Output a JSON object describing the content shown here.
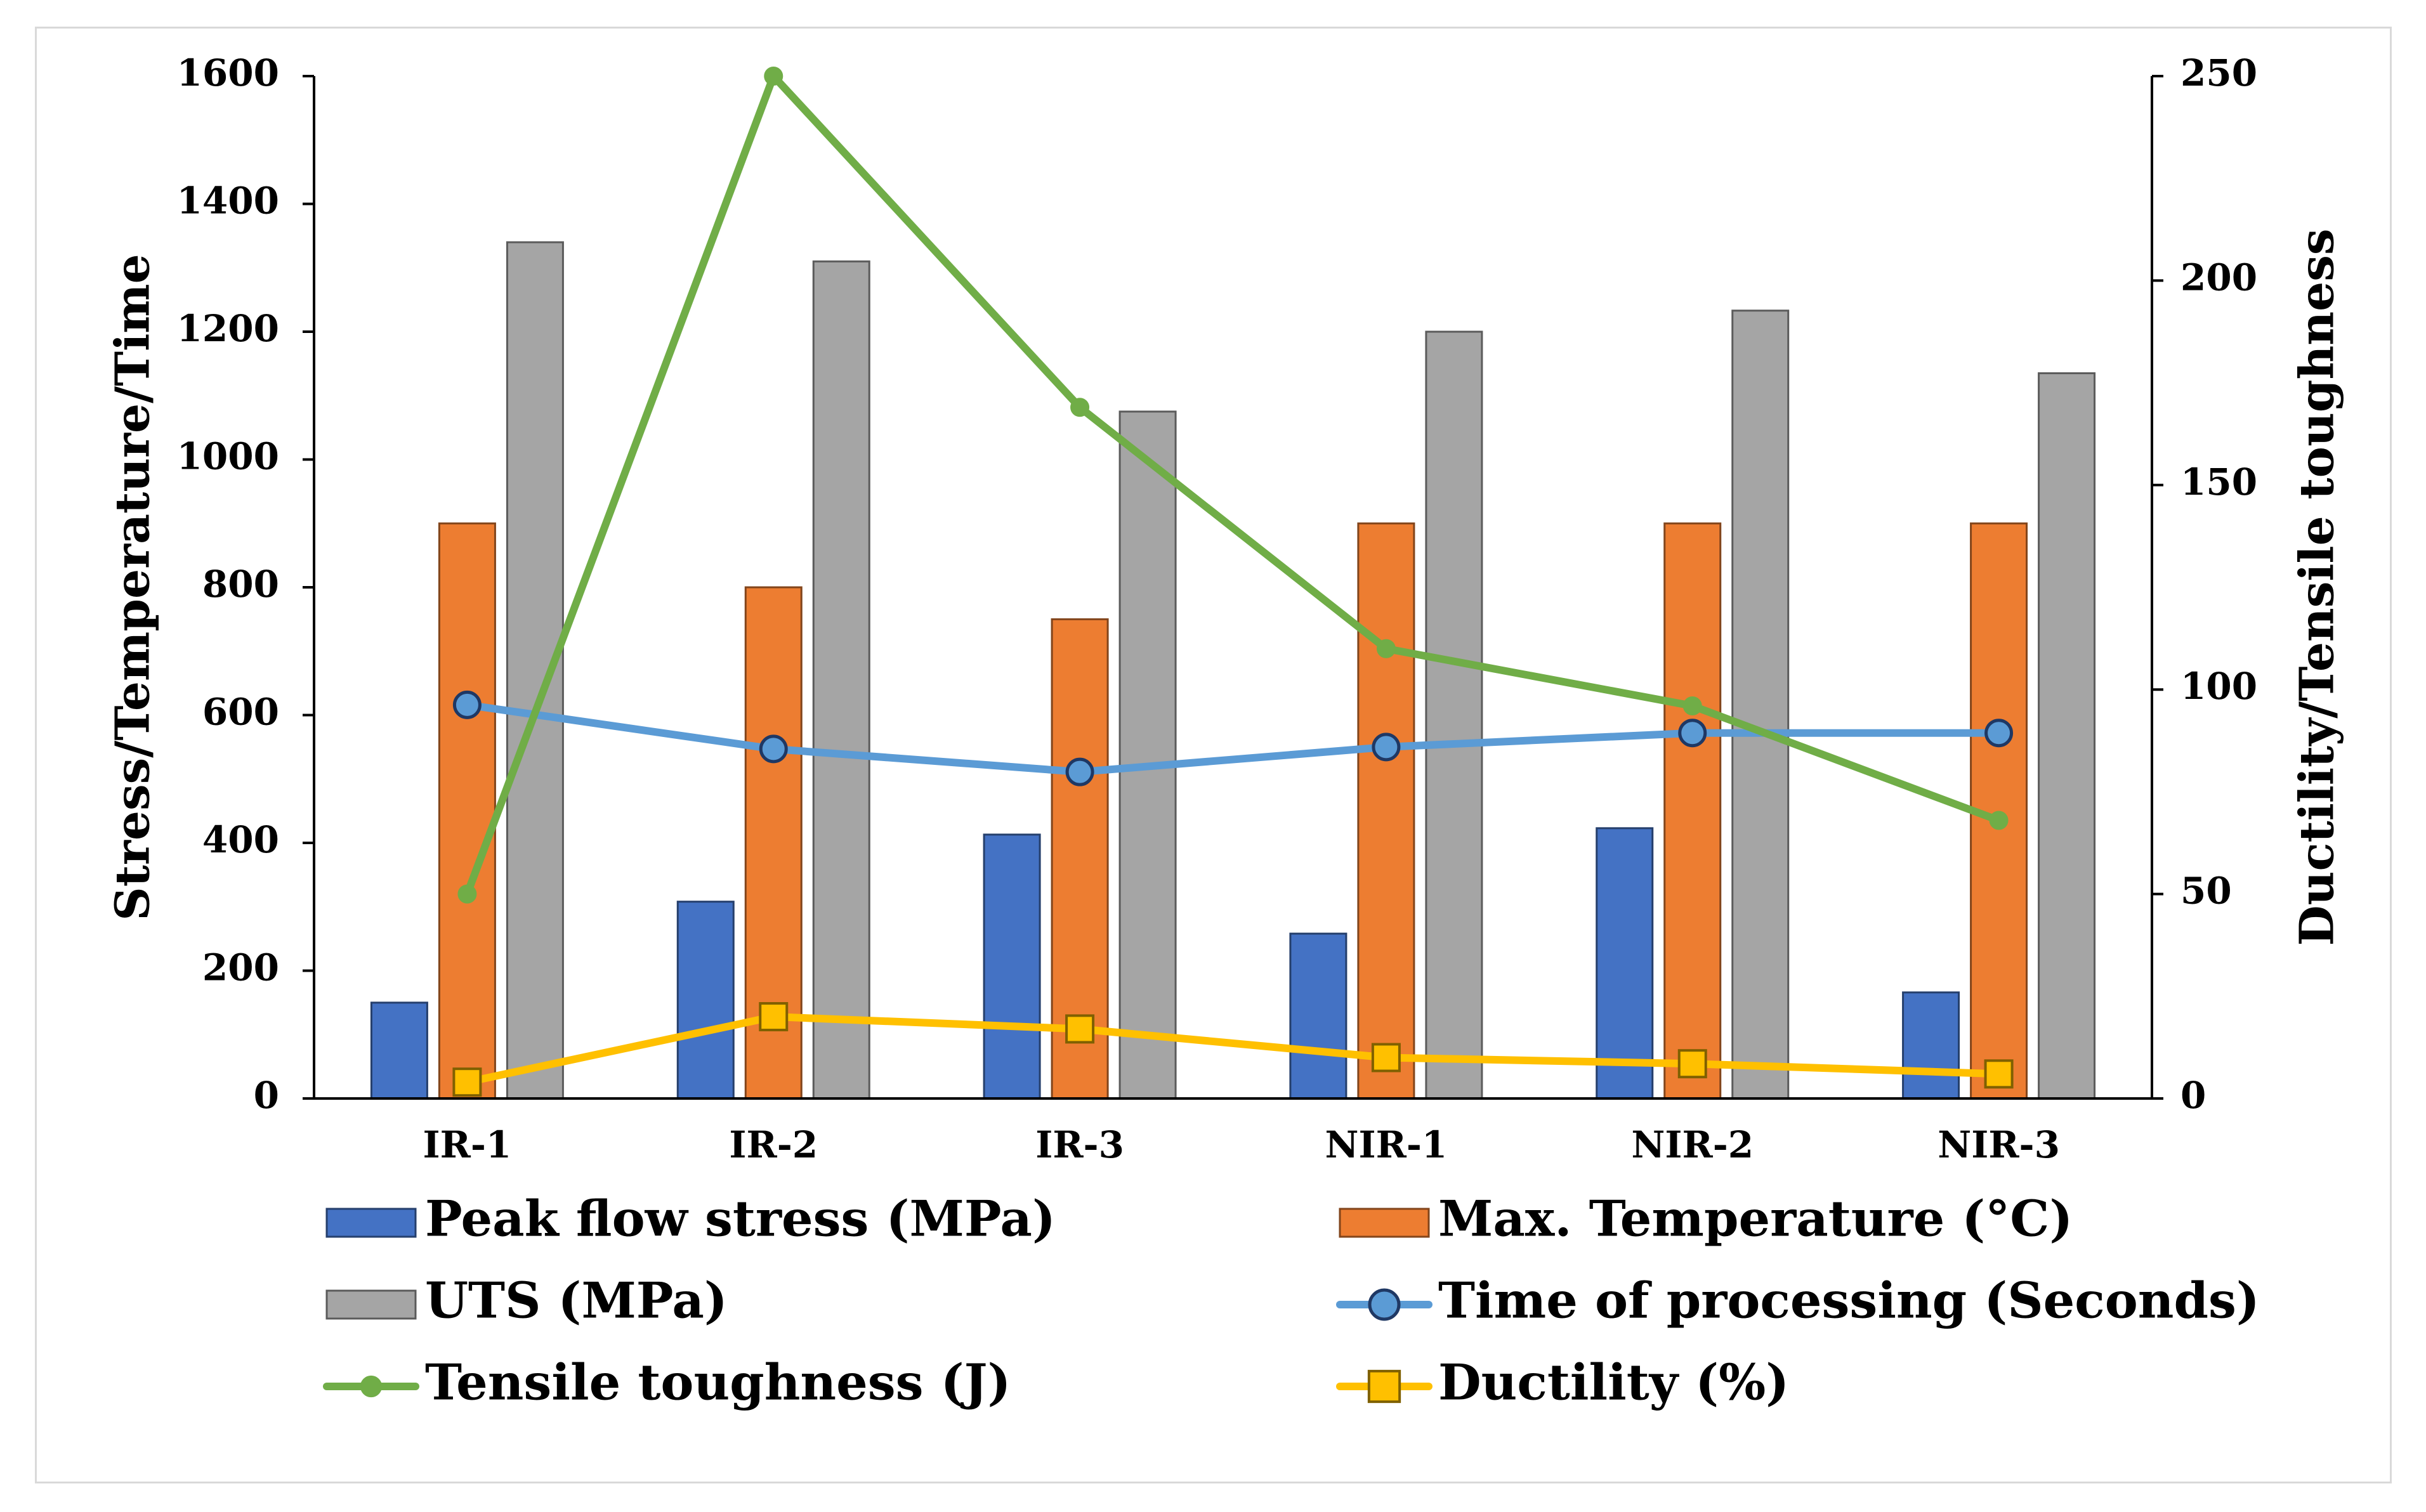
{
  "chart_data": {
    "type": "bar",
    "categories": [
      "IR-1",
      "IR-2",
      "IR-3",
      "NIR-1",
      "NIR-2",
      "NIR-3"
    ],
    "ylabel": "Stress/Temperature/Time",
    "y2label": "Ductility/Tensile toughness",
    "ylim": [
      0,
      1600
    ],
    "y2lim": [
      0,
      250
    ],
    "yticks": [
      0,
      200,
      400,
      600,
      800,
      1000,
      1200,
      1400,
      1600
    ],
    "y2ticks": [
      0,
      50,
      100,
      150,
      200,
      250
    ],
    "grid": false,
    "legend_position": "bottom",
    "series": [
      {
        "name": "Peak flow stress (MPa)",
        "kind": "bar",
        "axis": "left",
        "color": "#4472c4",
        "values": [
          150,
          308,
          413,
          258,
          423,
          166
        ]
      },
      {
        "name": "Max. Temperature (°C)",
        "kind": "bar",
        "axis": "left",
        "color": "#ed7d31",
        "values": [
          900,
          800,
          750,
          900,
          900,
          900
        ]
      },
      {
        "name": "UTS (MPa)",
        "kind": "bar",
        "axis": "left",
        "color": "#a5a5a5",
        "values": [
          1340,
          1310,
          1075,
          1200,
          1233,
          1135
        ]
      },
      {
        "name": "Time of processing (Seconds)",
        "kind": "line",
        "axis": "left",
        "marker": "circle",
        "color": "#5b9bd5",
        "values": [
          616,
          547,
          511,
          550,
          572,
          572
        ]
      },
      {
        "name": "Tensile toughness (J)",
        "kind": "line",
        "axis": "right",
        "marker": "dot",
        "color": "#70ad47",
        "values": [
          50,
          250,
          169,
          110,
          96,
          68
        ]
      },
      {
        "name": "Ductility (%)",
        "kind": "line",
        "axis": "right",
        "marker": "square",
        "color": "#ffc000",
        "values": [
          4,
          20,
          17,
          10,
          8.5,
          6
        ]
      }
    ]
  }
}
